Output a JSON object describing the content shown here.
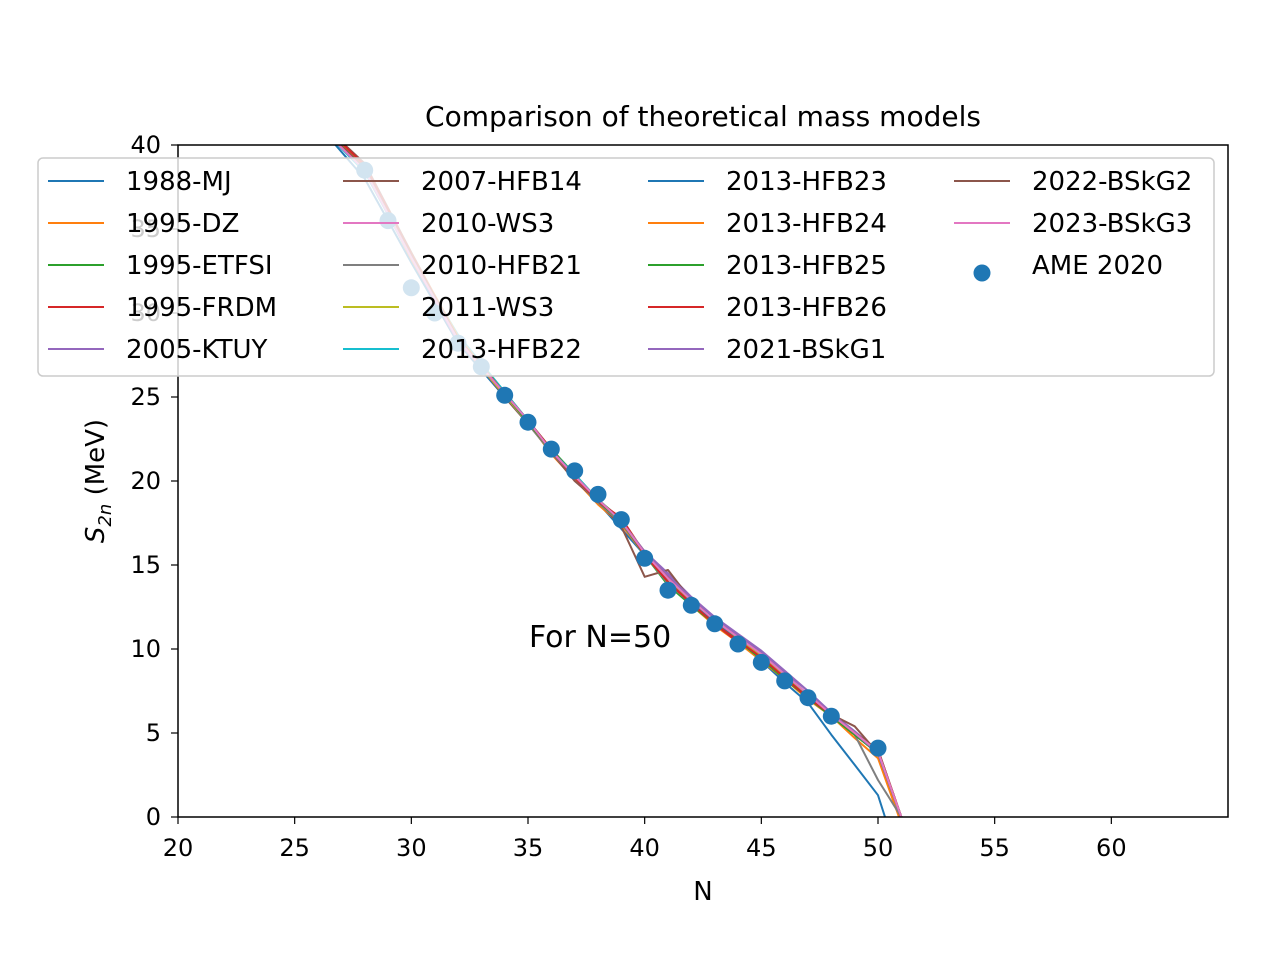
{
  "chart_data": {
    "type": "line",
    "title": "Comparison of theoretical mass models",
    "xlabel": "N",
    "ylabel_main": "S",
    "ylabel_sub": "2n",
    "ylabel_unit": " (MeV)",
    "xlim": [
      20,
      65
    ],
    "ylim": [
      0,
      40
    ],
    "xticks": [
      20,
      25,
      30,
      35,
      40,
      45,
      50,
      55,
      60
    ],
    "yticks": [
      0,
      5,
      10,
      15,
      20,
      25,
      30,
      35,
      40
    ],
    "grid": false,
    "legend_position": "upper center",
    "legend_columns": 4,
    "annotation": {
      "text": "For N=50",
      "x": 35,
      "y": 10.3
    },
    "series": [
      {
        "name": "1988-MJ",
        "color": "#1f77b4",
        "x": [
          26,
          28,
          30,
          32,
          34,
          36,
          38,
          40,
          42,
          44,
          46,
          47,
          48,
          49,
          50,
          50.3
        ],
        "values": [
          41.2,
          38.0,
          33.0,
          28.2,
          25.0,
          21.9,
          18.7,
          15.6,
          12.9,
          10.6,
          8.0,
          6.8,
          4.9,
          3.1,
          1.3,
          0
        ]
      },
      {
        "name": "1995-DZ",
        "color": "#ff7f0e",
        "x": [
          26,
          28,
          30,
          32,
          34,
          35,
          36,
          37,
          38,
          39,
          40,
          41,
          42,
          43,
          44,
          45,
          46,
          47,
          48,
          49,
          50,
          50.9
        ],
        "values": [
          41.5,
          38.6,
          33.2,
          28.5,
          25.2,
          23.5,
          21.6,
          20.1,
          18.6,
          17.4,
          15.6,
          13.9,
          12.6,
          11.4,
          10.4,
          9.3,
          8.2,
          7.0,
          6.0,
          4.7,
          3.5,
          0
        ]
      },
      {
        "name": "1995-ETFSI",
        "color": "#2ca02c",
        "x": [
          26,
          28,
          30,
          32,
          34,
          35,
          36,
          37,
          38,
          39,
          40,
          41,
          42,
          43,
          44,
          45,
          46,
          47,
          48,
          49,
          50,
          51
        ],
        "values": [
          41.6,
          38.8,
          33.5,
          28.6,
          25.3,
          23.6,
          21.9,
          20.4,
          18.9,
          17.7,
          15.6,
          13.8,
          12.6,
          11.5,
          10.5,
          9.4,
          8.2,
          7.1,
          6.0,
          4.9,
          3.8,
          0
        ]
      },
      {
        "name": "1995-FRDM",
        "color": "#d62728",
        "x": [
          26,
          28,
          30,
          32,
          34,
          35,
          36,
          37,
          38,
          39,
          40,
          41,
          42,
          43,
          44,
          45,
          46,
          47,
          48,
          49,
          50,
          51
        ],
        "values": [
          41.4,
          38.7,
          33.4,
          28.4,
          25.2,
          23.6,
          21.9,
          20.2,
          18.8,
          17.8,
          15.7,
          14.3,
          12.7,
          11.5,
          10.4,
          9.6,
          8.3,
          7.1,
          6.1,
          5.0,
          4.0,
          0
        ]
      },
      {
        "name": "2005-KTUY",
        "color": "#9467bd",
        "x": [
          26,
          28,
          30,
          32,
          34,
          35,
          36,
          37,
          38,
          39,
          40,
          41,
          42,
          43,
          44,
          45,
          46,
          47,
          48,
          49,
          50,
          51
        ],
        "values": [
          41.2,
          38.5,
          33.3,
          28.3,
          25.2,
          23.5,
          21.8,
          20.3,
          18.8,
          17.5,
          15.8,
          14.5,
          13.1,
          11.9,
          10.8,
          9.8,
          8.6,
          7.5,
          6.2,
          5.1,
          3.9,
          0
        ]
      },
      {
        "name": "2007-HFB14",
        "color": "#8c564b",
        "x": [
          26,
          28,
          30,
          32,
          34,
          35,
          36,
          37,
          38,
          39,
          40,
          41,
          42,
          43,
          44,
          45,
          46,
          47,
          48,
          49,
          50,
          51
        ],
        "values": [
          41.5,
          38.9,
          33.6,
          28.5,
          25.0,
          23.4,
          21.7,
          20.0,
          18.8,
          17.3,
          14.3,
          14.7,
          12.9,
          11.6,
          10.6,
          9.5,
          8.3,
          7.2,
          6.1,
          5.4,
          3.8,
          0
        ]
      },
      {
        "name": "2010-WS3",
        "color": "#e377c2",
        "x": [
          26,
          28,
          30,
          32,
          34,
          35,
          36,
          37,
          38,
          39,
          40,
          41,
          42,
          43,
          44,
          45,
          46,
          47,
          48,
          49,
          50,
          51
        ],
        "values": [
          41.3,
          38.6,
          33.4,
          28.4,
          25.1,
          23.5,
          21.8,
          20.3,
          18.8,
          17.6,
          15.8,
          14.2,
          12.8,
          11.6,
          10.6,
          9.6,
          8.4,
          7.3,
          6.1,
          5.0,
          3.9,
          0
        ]
      },
      {
        "name": "2010-HFB21",
        "color": "#7f7f7f",
        "x": [
          26,
          28,
          30,
          32,
          34,
          35,
          36,
          37,
          38,
          39,
          40,
          41,
          42,
          43,
          44,
          45,
          46,
          47,
          48,
          49,
          50,
          51
        ],
        "values": [
          41.4,
          38.7,
          33.5,
          28.5,
          25.1,
          23.4,
          21.7,
          20.2,
          18.7,
          17.5,
          15.6,
          13.9,
          12.7,
          11.5,
          10.5,
          9.5,
          8.3,
          7.2,
          6.0,
          4.9,
          2.2,
          0
        ]
      },
      {
        "name": "2011-WS3",
        "color": "#bcbd22",
        "x": [
          26,
          28,
          30,
          32,
          34,
          35,
          36,
          37,
          38,
          39,
          40,
          41,
          42,
          43,
          44,
          45,
          46,
          47,
          48,
          49,
          50,
          51
        ],
        "values": [
          41.3,
          38.6,
          33.4,
          28.4,
          25.1,
          23.5,
          21.8,
          20.3,
          18.8,
          17.6,
          15.8,
          14.2,
          12.8,
          11.6,
          10.6,
          9.6,
          8.4,
          7.3,
          6.1,
          5.0,
          3.9,
          0
        ]
      },
      {
        "name": "2013-HFB22",
        "color": "#17becf",
        "x": [
          26,
          28,
          30,
          32,
          34,
          35,
          36,
          37,
          38,
          39,
          40,
          41,
          42,
          43,
          44,
          45,
          46,
          47,
          48,
          49,
          50,
          51
        ],
        "values": [
          41.2,
          38.4,
          33.3,
          28.7,
          25.3,
          23.6,
          21.8,
          20.4,
          18.9,
          17.6,
          15.6,
          14.0,
          12.7,
          11.6,
          10.5,
          9.4,
          8.3,
          7.1,
          6.0,
          4.9,
          3.8,
          0
        ]
      },
      {
        "name": "2013-HFB23",
        "color": "#1f77b4",
        "x": [
          26,
          28,
          30,
          32,
          34,
          35,
          36,
          37,
          38,
          39,
          40,
          41,
          42,
          43,
          44,
          45,
          46,
          47,
          48,
          49,
          50,
          51
        ],
        "values": [
          41.3,
          38.5,
          33.4,
          28.6,
          25.2,
          23.6,
          21.8,
          20.3,
          18.9,
          17.6,
          15.6,
          14.0,
          12.7,
          11.6,
          10.5,
          9.4,
          8.3,
          7.1,
          6.0,
          4.9,
          3.8,
          0
        ]
      },
      {
        "name": "2013-HFB24",
        "color": "#ff7f0e",
        "x": [
          26,
          28,
          30,
          32,
          34,
          35,
          36,
          37,
          38,
          39,
          40,
          41,
          42,
          43,
          44,
          45,
          46,
          47,
          48,
          49,
          50,
          51
        ],
        "values": [
          41.4,
          38.6,
          33.5,
          28.6,
          25.2,
          23.5,
          21.8,
          20.3,
          18.8,
          17.6,
          15.6,
          14.0,
          12.7,
          11.5,
          10.5,
          9.4,
          8.3,
          7.1,
          6.0,
          4.9,
          3.8,
          0
        ]
      },
      {
        "name": "2013-HFB25",
        "color": "#2ca02c",
        "x": [
          26,
          28,
          30,
          32,
          34,
          35,
          36,
          37,
          38,
          39,
          40,
          41,
          42,
          43,
          44,
          45,
          46,
          47,
          48,
          49,
          50,
          51
        ],
        "values": [
          41.3,
          38.6,
          33.4,
          28.5,
          25.2,
          23.5,
          21.8,
          20.3,
          18.8,
          17.6,
          15.6,
          14.0,
          12.7,
          11.5,
          10.5,
          9.4,
          8.3,
          7.1,
          6.0,
          4.9,
          3.8,
          0
        ]
      },
      {
        "name": "2013-HFB26",
        "color": "#d62728",
        "x": [
          26,
          28,
          30,
          32,
          34,
          35,
          36,
          37,
          38,
          39,
          40,
          41,
          42,
          43,
          44,
          45,
          46,
          47,
          48,
          49,
          50,
          51
        ],
        "values": [
          41.5,
          38.8,
          33.5,
          28.5,
          25.2,
          23.6,
          21.8,
          20.2,
          18.8,
          17.7,
          15.6,
          14.0,
          12.7,
          11.5,
          10.5,
          9.5,
          8.3,
          7.1,
          6.1,
          5.0,
          4.0,
          0
        ]
      },
      {
        "name": "2021-BSkG1",
        "color": "#9467bd",
        "x": [
          26,
          28,
          30,
          32,
          34,
          35,
          36,
          37,
          38,
          39,
          40,
          41,
          42,
          43,
          44,
          45,
          46,
          47,
          48,
          49,
          50,
          51
        ],
        "values": [
          41.2,
          38.5,
          33.3,
          28.4,
          25.2,
          23.6,
          21.8,
          20.3,
          18.9,
          17.6,
          15.8,
          14.4,
          13.0,
          11.9,
          10.9,
          9.9,
          8.7,
          7.5,
          6.2,
          5.0,
          3.8,
          0
        ]
      },
      {
        "name": "2022-BSkG2",
        "color": "#8c564b",
        "x": [
          26,
          28,
          30,
          32,
          34,
          35,
          36,
          37,
          38,
          39,
          40,
          41,
          42,
          43,
          44,
          45,
          46,
          47,
          48,
          49,
          50,
          51
        ],
        "values": [
          41.3,
          38.6,
          33.4,
          28.5,
          25.2,
          23.6,
          21.8,
          20.3,
          18.9,
          17.6,
          15.7,
          14.2,
          12.9,
          11.7,
          10.7,
          9.7,
          8.5,
          7.3,
          6.1,
          5.0,
          4.0,
          0
        ]
      },
      {
        "name": "2023-BSkG3",
        "color": "#e377c2",
        "x": [
          26,
          28,
          30,
          32,
          34,
          35,
          36,
          37,
          38,
          39,
          40,
          41,
          42,
          43,
          44,
          45,
          46,
          47,
          48,
          49,
          50,
          51
        ],
        "values": [
          41.2,
          38.5,
          33.3,
          28.4,
          25.2,
          23.6,
          21.8,
          20.3,
          18.9,
          17.6,
          15.7,
          14.2,
          12.9,
          11.7,
          10.7,
          9.7,
          8.5,
          7.3,
          6.1,
          5.0,
          3.9,
          0
        ]
      }
    ],
    "scatter": {
      "name": "AME 2020",
      "color": "#1f77b4",
      "x": [
        27,
        28,
        29,
        30,
        31,
        32,
        33,
        34,
        35,
        36,
        37,
        38,
        39,
        40,
        41,
        42,
        43,
        44,
        45,
        46,
        47,
        48,
        50
      ],
      "values": [
        40.5,
        38.5,
        35.5,
        31.5,
        30.0,
        28.2,
        26.8,
        25.1,
        23.5,
        21.9,
        20.6,
        19.2,
        17.7,
        15.4,
        13.5,
        12.6,
        11.5,
        10.3,
        9.2,
        8.1,
        7.1,
        6.0,
        4.1
      ]
    }
  }
}
